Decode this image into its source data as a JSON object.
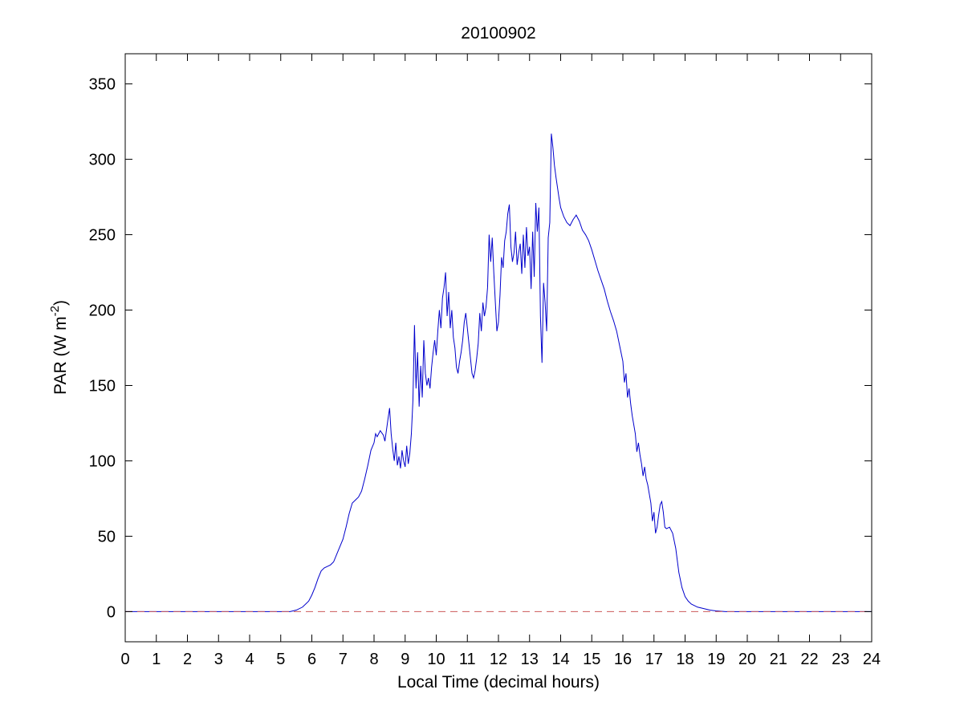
{
  "figure": {
    "title": "20100902",
    "xlabel": "Local Time (decimal hours)",
    "ylabel_main": "PAR (W m",
    "ylabel_sup": "-2",
    "ylabel_close": ")"
  },
  "chart_data": {
    "type": "line",
    "title": "20100902",
    "xlabel": "Local Time (decimal hours)",
    "ylabel": "PAR (W m^-2)",
    "xlim": [
      0,
      24
    ],
    "ylim": [
      -20,
      370
    ],
    "xticks": [
      0,
      1,
      2,
      3,
      4,
      5,
      6,
      7,
      8,
      9,
      10,
      11,
      12,
      13,
      14,
      15,
      16,
      17,
      18,
      19,
      20,
      21,
      22,
      23,
      24
    ],
    "yticks": [
      0,
      50,
      100,
      150,
      200,
      250,
      300,
      350
    ],
    "grid": false,
    "legend": "none",
    "colors": {
      "series": "#0000cc",
      "reference": "#cc5a5a",
      "axis": "#000000",
      "background": "#ffffff"
    },
    "series": [
      {
        "name": "PAR",
        "color": "#0000cc",
        "style": "solid",
        "points": [
          [
            0,
            0
          ],
          [
            0.5,
            0
          ],
          [
            1,
            0
          ],
          [
            1.5,
            0
          ],
          [
            2,
            0
          ],
          [
            2.5,
            0
          ],
          [
            3,
            0
          ],
          [
            3.5,
            0
          ],
          [
            4,
            0
          ],
          [
            4.5,
            0
          ],
          [
            5,
            0
          ],
          [
            5.3,
            0
          ],
          [
            5.5,
            1
          ],
          [
            5.7,
            3
          ],
          [
            5.9,
            7
          ],
          [
            6.0,
            11
          ],
          [
            6.1,
            16
          ],
          [
            6.2,
            22
          ],
          [
            6.3,
            27
          ],
          [
            6.4,
            29
          ],
          [
            6.5,
            30
          ],
          [
            6.6,
            31
          ],
          [
            6.7,
            33
          ],
          [
            6.8,
            38
          ],
          [
            6.9,
            43
          ],
          [
            7.0,
            48
          ],
          [
            7.1,
            56
          ],
          [
            7.2,
            65
          ],
          [
            7.3,
            72
          ],
          [
            7.4,
            74
          ],
          [
            7.5,
            76
          ],
          [
            7.6,
            80
          ],
          [
            7.7,
            88
          ],
          [
            7.8,
            97
          ],
          [
            7.9,
            107
          ],
          [
            8.0,
            112
          ],
          [
            8.05,
            118
          ],
          [
            8.1,
            116
          ],
          [
            8.2,
            120
          ],
          [
            8.3,
            117
          ],
          [
            8.35,
            113
          ],
          [
            8.45,
            128
          ],
          [
            8.5,
            135
          ],
          [
            8.55,
            118
          ],
          [
            8.6,
            108
          ],
          [
            8.65,
            100
          ],
          [
            8.7,
            112
          ],
          [
            8.75,
            97
          ],
          [
            8.8,
            103
          ],
          [
            8.85,
            95
          ],
          [
            8.9,
            107
          ],
          [
            8.95,
            100
          ],
          [
            9.0,
            96
          ],
          [
            9.05,
            110
          ],
          [
            9.1,
            98
          ],
          [
            9.15,
            105
          ],
          [
            9.2,
            118
          ],
          [
            9.25,
            140
          ],
          [
            9.3,
            190
          ],
          [
            9.35,
            148
          ],
          [
            9.4,
            172
          ],
          [
            9.45,
            136
          ],
          [
            9.5,
            163
          ],
          [
            9.55,
            142
          ],
          [
            9.6,
            180
          ],
          [
            9.65,
            158
          ],
          [
            9.7,
            150
          ],
          [
            9.75,
            155
          ],
          [
            9.8,
            148
          ],
          [
            9.85,
            162
          ],
          [
            9.9,
            172
          ],
          [
            9.95,
            180
          ],
          [
            10.0,
            170
          ],
          [
            10.05,
            186
          ],
          [
            10.1,
            200
          ],
          [
            10.15,
            188
          ],
          [
            10.2,
            208
          ],
          [
            10.25,
            215
          ],
          [
            10.3,
            225
          ],
          [
            10.35,
            196
          ],
          [
            10.4,
            212
          ],
          [
            10.45,
            188
          ],
          [
            10.5,
            200
          ],
          [
            10.55,
            182
          ],
          [
            10.6,
            175
          ],
          [
            10.65,
            162
          ],
          [
            10.7,
            158
          ],
          [
            10.75,
            166
          ],
          [
            10.8,
            172
          ],
          [
            10.85,
            180
          ],
          [
            10.9,
            192
          ],
          [
            10.95,
            198
          ],
          [
            11.0,
            188
          ],
          [
            11.05,
            178
          ],
          [
            11.1,
            168
          ],
          [
            11.15,
            158
          ],
          [
            11.2,
            155
          ],
          [
            11.25,
            160
          ],
          [
            11.3,
            168
          ],
          [
            11.35,
            178
          ],
          [
            11.4,
            198
          ],
          [
            11.45,
            186
          ],
          [
            11.5,
            205
          ],
          [
            11.55,
            196
          ],
          [
            11.6,
            202
          ],
          [
            11.65,
            215
          ],
          [
            11.7,
            250
          ],
          [
            11.75,
            232
          ],
          [
            11.8,
            248
          ],
          [
            11.85,
            225
          ],
          [
            11.9,
            205
          ],
          [
            11.95,
            186
          ],
          [
            12.0,
            192
          ],
          [
            12.05,
            210
          ],
          [
            12.1,
            235
          ],
          [
            12.15,
            228
          ],
          [
            12.2,
            246
          ],
          [
            12.25,
            252
          ],
          [
            12.3,
            264
          ],
          [
            12.35,
            270
          ],
          [
            12.4,
            242
          ],
          [
            12.45,
            232
          ],
          [
            12.5,
            238
          ],
          [
            12.55,
            252
          ],
          [
            12.6,
            230
          ],
          [
            12.65,
            238
          ],
          [
            12.7,
            244
          ],
          [
            12.75,
            224
          ],
          [
            12.8,
            250
          ],
          [
            12.85,
            228
          ],
          [
            12.9,
            255
          ],
          [
            12.95,
            236
          ],
          [
            13.0,
            242
          ],
          [
            13.05,
            214
          ],
          [
            13.1,
            252
          ],
          [
            13.15,
            222
          ],
          [
            13.2,
            271
          ],
          [
            13.25,
            252
          ],
          [
            13.3,
            268
          ],
          [
            13.35,
            196
          ],
          [
            13.4,
            165
          ],
          [
            13.45,
            218
          ],
          [
            13.5,
            205
          ],
          [
            13.55,
            186
          ],
          [
            13.6,
            248
          ],
          [
            13.65,
            258
          ],
          [
            13.7,
            317
          ],
          [
            13.75,
            308
          ],
          [
            13.8,
            296
          ],
          [
            13.85,
            288
          ],
          [
            13.9,
            281
          ],
          [
            13.95,
            274
          ],
          [
            14.0,
            268
          ],
          [
            14.1,
            262
          ],
          [
            14.2,
            258
          ],
          [
            14.3,
            256
          ],
          [
            14.4,
            260
          ],
          [
            14.5,
            263
          ],
          [
            14.6,
            259
          ],
          [
            14.7,
            253
          ],
          [
            14.8,
            250
          ],
          [
            14.9,
            246
          ],
          [
            15.0,
            240
          ],
          [
            15.1,
            233
          ],
          [
            15.2,
            226
          ],
          [
            15.3,
            220
          ],
          [
            15.4,
            214
          ],
          [
            15.5,
            206
          ],
          [
            15.6,
            199
          ],
          [
            15.7,
            193
          ],
          [
            15.8,
            186
          ],
          [
            15.9,
            176
          ],
          [
            16.0,
            166
          ],
          [
            16.05,
            152
          ],
          [
            16.1,
            158
          ],
          [
            16.15,
            142
          ],
          [
            16.2,
            148
          ],
          [
            16.25,
            138
          ],
          [
            16.3,
            130
          ],
          [
            16.35,
            124
          ],
          [
            16.4,
            118
          ],
          [
            16.45,
            106
          ],
          [
            16.5,
            112
          ],
          [
            16.55,
            104
          ],
          [
            16.6,
            98
          ],
          [
            16.65,
            90
          ],
          [
            16.7,
            96
          ],
          [
            16.75,
            88
          ],
          [
            16.8,
            84
          ],
          [
            16.85,
            78
          ],
          [
            16.9,
            72
          ],
          [
            16.95,
            60
          ],
          [
            17.0,
            66
          ],
          [
            17.05,
            52
          ],
          [
            17.1,
            56
          ],
          [
            17.15,
            64
          ],
          [
            17.2,
            71
          ],
          [
            17.25,
            73
          ],
          [
            17.3,
            66
          ],
          [
            17.35,
            56
          ],
          [
            17.4,
            55
          ],
          [
            17.5,
            56
          ],
          [
            17.6,
            52
          ],
          [
            17.7,
            42
          ],
          [
            17.8,
            26
          ],
          [
            17.9,
            16
          ],
          [
            18.0,
            10
          ],
          [
            18.1,
            7
          ],
          [
            18.2,
            5
          ],
          [
            18.4,
            3
          ],
          [
            18.6,
            2
          ],
          [
            18.8,
            1
          ],
          [
            19.0,
            0.5
          ],
          [
            19.3,
            0
          ],
          [
            19.5,
            0
          ],
          [
            20,
            0
          ],
          [
            20.5,
            0
          ],
          [
            21,
            0
          ],
          [
            21.5,
            0
          ],
          [
            22,
            0
          ],
          [
            22.5,
            0
          ],
          [
            23,
            0
          ],
          [
            23.5,
            0
          ],
          [
            24,
            0
          ]
        ]
      },
      {
        "name": "zero-reference",
        "color": "#cc5a5a",
        "style": "dashed",
        "points": [
          [
            0,
            0
          ],
          [
            24,
            0
          ]
        ]
      }
    ]
  }
}
